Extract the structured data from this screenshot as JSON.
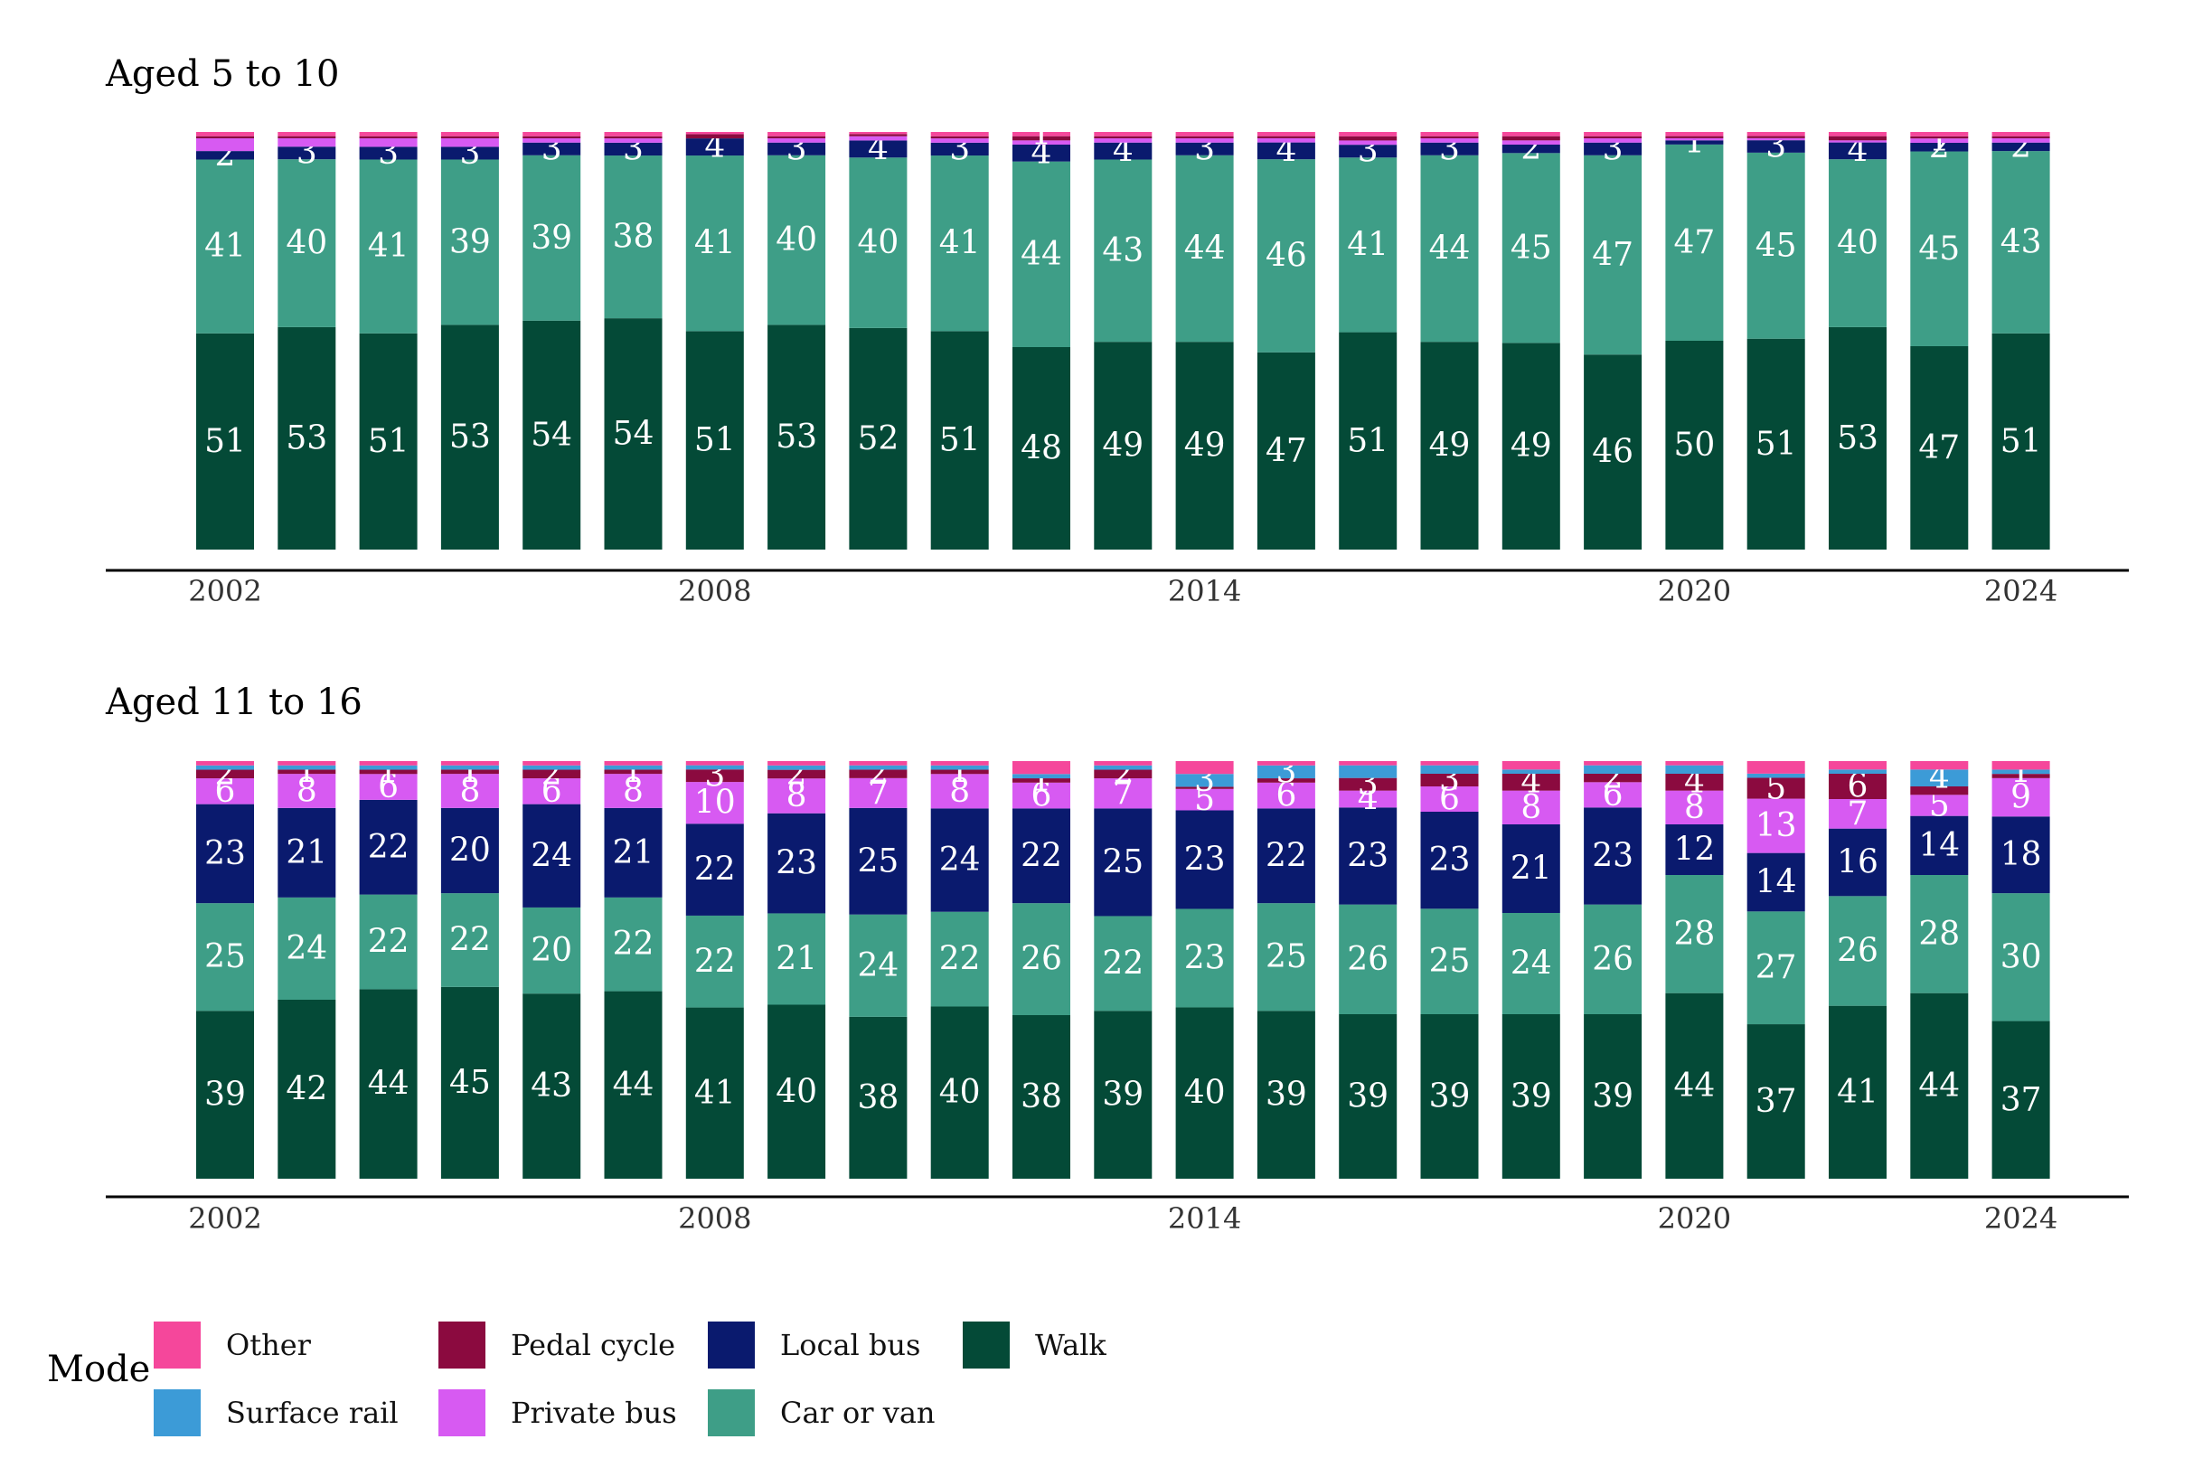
{
  "chart_data": [
    {
      "type": "bar",
      "stacked": true,
      "title": "Aged 5 to 10",
      "x": [
        2002,
        2003,
        2004,
        2005,
        2006,
        2007,
        2008,
        2009,
        2010,
        2011,
        2012,
        2013,
        2014,
        2015,
        2016,
        2017,
        2018,
        2019,
        2020,
        2021,
        2022,
        2023,
        2024
      ],
      "x_tick_labels": [
        "2002",
        "2008",
        "2014",
        "2020",
        "2024"
      ],
      "series": [
        {
          "name": "Walk",
          "values": [
            51,
            53,
            51,
            53,
            54,
            54,
            51,
            53,
            52,
            51,
            48,
            49,
            49,
            47,
            51,
            49,
            49,
            46,
            50,
            51,
            53,
            47,
            51
          ],
          "labels": [
            "51",
            "53",
            "51",
            "53",
            "54",
            "54",
            "51",
            "53",
            "52",
            "51",
            "48",
            "49",
            "49",
            "47",
            "51",
            "49",
            "49",
            "46",
            "50",
            "51",
            "53",
            "47",
            "51"
          ]
        },
        {
          "name": "Car or van",
          "values": [
            41,
            40,
            41,
            39,
            39,
            38,
            41,
            40,
            40,
            41,
            44,
            43,
            44,
            46,
            41,
            44,
            45,
            47,
            47,
            45,
            40,
            45,
            43
          ],
          "labels": [
            "41",
            "40",
            "41",
            "39",
            "39",
            "38",
            "41",
            "40",
            "40",
            "41",
            "44",
            "43",
            "44",
            "46",
            "41",
            "44",
            "45",
            "47",
            "47",
            "45",
            "40",
            "45",
            "43"
          ]
        },
        {
          "name": "Local bus",
          "values": [
            2,
            3,
            3,
            3,
            3,
            3,
            4,
            3,
            4,
            3,
            4,
            4,
            3,
            4,
            3,
            3,
            2,
            3,
            1,
            3,
            4,
            2,
            2
          ],
          "labels": [
            "2",
            "3",
            "3",
            "3",
            "3",
            "3",
            "4",
            "3",
            "4",
            "3",
            "4",
            "4",
            "3",
            "4",
            "3",
            "3",
            "2",
            "3",
            "1",
            "3",
            "4",
            "2",
            "2"
          ]
        },
        {
          "name": "Private bus",
          "values": [
            3,
            2,
            2,
            2,
            1,
            1,
            0,
            1,
            1,
            1,
            1,
            1,
            1,
            1,
            1,
            1,
            1,
            1,
            0.5,
            0.5,
            0.5,
            1,
            1
          ],
          "labels": [
            "",
            "",
            "",
            "",
            "",
            "",
            "0",
            "",
            "",
            "",
            "",
            "",
            "",
            "",
            "",
            "",
            "",
            "",
            "",
            "",
            "",
            "1",
            ""
          ]
        },
        {
          "name": "Pedal cycle",
          "values": [
            0.5,
            0.5,
            0.5,
            0.5,
            0.5,
            0.5,
            1,
            0.5,
            0.5,
            0.5,
            1,
            0.5,
            0.5,
            0.5,
            1,
            0.5,
            1,
            0.5,
            0.5,
            0.5,
            1,
            0.5,
            0.5
          ],
          "labels": [
            "",
            "",
            "",
            "",
            "",
            "",
            "",
            "",
            "",
            "",
            "",
            "",
            "",
            "",
            "",
            "",
            "",
            "",
            "",
            "",
            "",
            "",
            ""
          ]
        },
        {
          "name": "Surface rail",
          "values": [
            0,
            0,
            0,
            0,
            0,
            0,
            0,
            0,
            0,
            0,
            0,
            0,
            0,
            0,
            0,
            0,
            0,
            0,
            0,
            0,
            0,
            0,
            0
          ],
          "labels": [
            "",
            "",
            "",
            "",
            "",
            "",
            "",
            "",
            "",
            "",
            "",
            "",
            "",
            "",
            "",
            "",
            "",
            "",
            "",
            "",
            "",
            "",
            ""
          ]
        },
        {
          "name": "Other",
          "values": [
            1,
            1,
            1,
            1,
            1,
            1,
            0.5,
            1,
            0.5,
            1,
            1,
            1,
            1,
            1,
            1,
            1,
            1,
            1,
            1,
            1,
            1,
            1,
            1
          ],
          "labels": [
            "",
            "",
            "",
            "",
            "",
            "",
            "",
            "",
            "",
            "",
            "1",
            "",
            "",
            "",
            "",
            "",
            "",
            "",
            "",
            "",
            "",
            "",
            ""
          ]
        }
      ],
      "ylim": [
        0,
        100
      ],
      "xlabel": "",
      "ylabel": ""
    },
    {
      "type": "bar",
      "stacked": true,
      "title": "Aged 11 to 16",
      "x": [
        2002,
        2003,
        2004,
        2005,
        2006,
        2007,
        2008,
        2009,
        2010,
        2011,
        2012,
        2013,
        2014,
        2015,
        2016,
        2017,
        2018,
        2019,
        2020,
        2021,
        2022,
        2023,
        2024
      ],
      "x_tick_labels": [
        "2002",
        "2008",
        "2014",
        "2020",
        "2024"
      ],
      "series": [
        {
          "name": "Walk",
          "values": [
            39,
            42,
            44,
            45,
            43,
            44,
            41,
            40,
            38,
            40,
            38,
            39,
            40,
            39,
            39,
            39,
            39,
            39,
            44,
            37,
            41,
            44,
            37
          ],
          "labels": [
            "39",
            "42",
            "44",
            "45",
            "43",
            "44",
            "41",
            "40",
            "38",
            "40",
            "38",
            "39",
            "40",
            "39",
            "39",
            "39",
            "39",
            "39",
            "44",
            "37",
            "41",
            "44",
            "37"
          ]
        },
        {
          "name": "Car or van",
          "values": [
            25,
            24,
            22,
            22,
            20,
            22,
            22,
            21,
            24,
            22,
            26,
            22,
            23,
            25,
            26,
            25,
            24,
            26,
            28,
            27,
            26,
            28,
            30
          ],
          "labels": [
            "25",
            "24",
            "22",
            "22",
            "20",
            "22",
            "22",
            "21",
            "24",
            "22",
            "26",
            "22",
            "23",
            "25",
            "26",
            "25",
            "24",
            "26",
            "28",
            "27",
            "26",
            "28",
            "30"
          ]
        },
        {
          "name": "Local bus",
          "values": [
            23,
            21,
            22,
            20,
            24,
            21,
            22,
            23,
            25,
            24,
            22,
            25,
            23,
            22,
            23,
            23,
            21,
            23,
            12,
            14,
            16,
            14,
            18
          ],
          "labels": [
            "23",
            "21",
            "22",
            "20",
            "24",
            "21",
            "22",
            "23",
            "25",
            "24",
            "22",
            "25",
            "23",
            "22",
            "23",
            "23",
            "21",
            "23",
            "12",
            "14",
            "16",
            "14",
            "18"
          ]
        },
        {
          "name": "Private bus",
          "values": [
            6,
            8,
            6,
            8,
            6,
            8,
            10,
            8,
            7,
            8,
            6,
            7,
            5,
            6,
            4,
            6,
            8,
            6,
            8,
            13,
            7,
            5,
            9
          ],
          "labels": [
            "6",
            "8",
            "6",
            "8",
            "6",
            "8",
            "10",
            "8",
            "7",
            "8",
            "6",
            "7",
            "5",
            "6",
            "4",
            "6",
            "8",
            "6",
            "8",
            "13",
            "7",
            "5",
            "9"
          ]
        },
        {
          "name": "Pedal cycle",
          "values": [
            2,
            1,
            1,
            1,
            2,
            1,
            3,
            2,
            2,
            1,
            1,
            2,
            0.5,
            1,
            3,
            3,
            4,
            2,
            4,
            5,
            6,
            2,
            1
          ],
          "labels": [
            "2",
            "1",
            "1",
            "1",
            "2",
            "1",
            "3",
            "2",
            "2",
            "1",
            "1",
            "2",
            "",
            "",
            "3",
            "3",
            "4",
            "2",
            "4",
            "5",
            "6",
            "",
            ""
          ]
        },
        {
          "name": "Surface rail",
          "values": [
            1,
            1,
            1,
            1,
            1,
            1,
            1,
            1,
            1,
            1,
            1,
            1,
            3,
            3,
            3,
            2,
            1,
            2,
            2,
            1,
            1,
            4,
            1
          ],
          "labels": [
            "",
            "",
            "",
            "",
            "",
            "",
            "",
            "",
            "",
            "",
            "",
            "",
            "3",
            "3",
            "",
            "",
            "",
            "",
            "",
            "",
            "",
            "4",
            "1"
          ]
        },
        {
          "name": "Other",
          "values": [
            1,
            1,
            1,
            1,
            1,
            1,
            1,
            1,
            1,
            1,
            3,
            1,
            3,
            1,
            1,
            1,
            2,
            1,
            1,
            3,
            2,
            2,
            2
          ],
          "labels": [
            "",
            "",
            "",
            "",
            "",
            "",
            "",
            "",
            "",
            "",
            "",
            "",
            "",
            "",
            "",
            "",
            "",
            "",
            "",
            "",
            "",
            "",
            ""
          ]
        }
      ],
      "ylim": [
        0,
        100
      ],
      "xlabel": "",
      "ylabel": ""
    }
  ],
  "legend": {
    "title": "Mode",
    "items": [
      {
        "name": "Other",
        "color": "#F5479B"
      },
      {
        "name": "Surface rail",
        "color": "#3C9BD7"
      },
      {
        "name": "Pedal cycle",
        "color": "#8B0A3F"
      },
      {
        "name": "Private bus",
        "color": "#D75AF2"
      },
      {
        "name": "Local bus",
        "color": "#0A1A6E"
      },
      {
        "name": "Car or van",
        "color": "#3E9E87"
      },
      {
        "name": "Walk",
        "color": "#044A37"
      }
    ]
  }
}
